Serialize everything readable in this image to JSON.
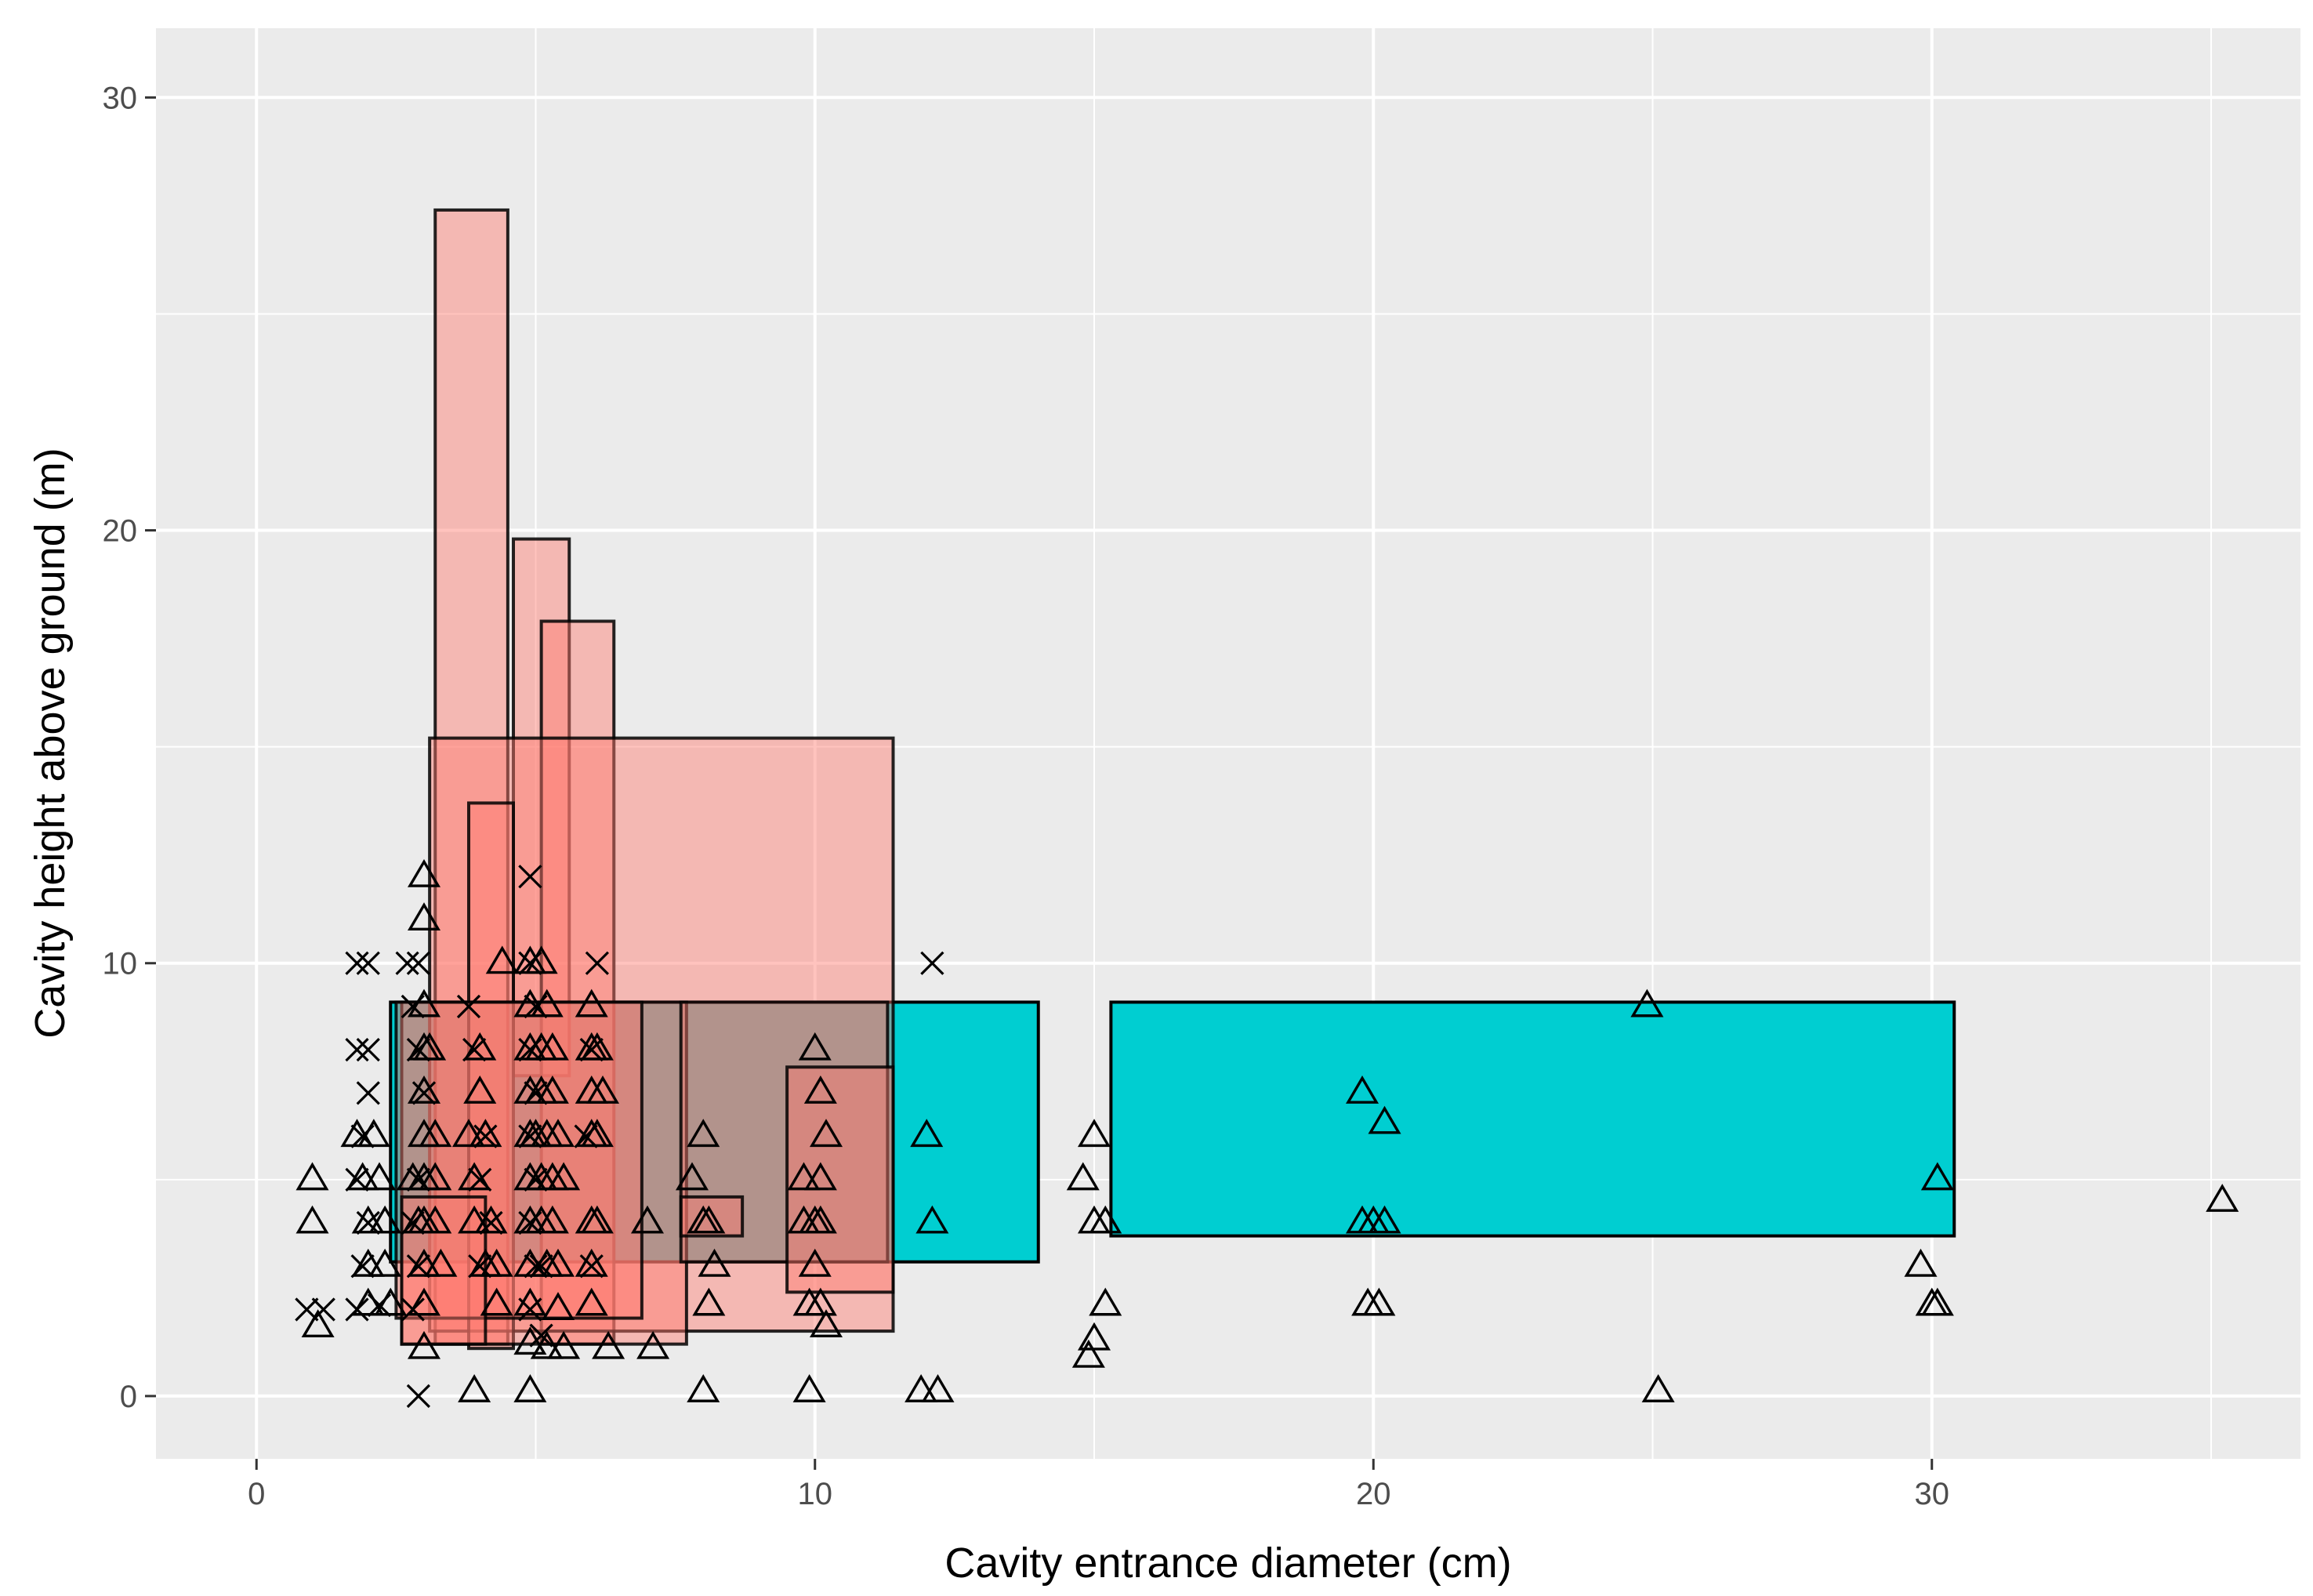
{
  "chart_data": {
    "type": "scatter",
    "title": "",
    "xlabel": "Cavity entrance diameter (cm)",
    "ylabel": "Cavity height above ground (m)",
    "xlim": [
      -1.8,
      36.6
    ],
    "ylim": [
      -1.45,
      31.6
    ],
    "x_ticks": [
      0,
      10,
      20,
      30
    ],
    "y_ticks": [
      0,
      10,
      20,
      30
    ],
    "x_tick_labels": [
      "0",
      "10",
      "20",
      "30"
    ],
    "y_tick_labels": [
      "0",
      "10",
      "20",
      "30"
    ],
    "grid": true,
    "colors": {
      "panel": "#ebebeb",
      "grid_major": "#ffffff",
      "red_fill": "#ff7a6f",
      "cyan_fill": "#00ced1",
      "outline": "#000000"
    },
    "rectangles": [
      {
        "group": "cyan",
        "x0": 2.4,
        "x1": 14.0,
        "y0": 3.1,
        "y1": 9.1
      },
      {
        "group": "cyan",
        "x0": 15.3,
        "x1": 30.4,
        "y0": 3.7,
        "y1": 9.1
      },
      {
        "group": "red",
        "x0": 3.2,
        "x1": 4.5,
        "y0": 1.2,
        "y1": 27.4
      },
      {
        "group": "red",
        "x0": 4.6,
        "x1": 5.6,
        "y0": 7.4,
        "y1": 19.8
      },
      {
        "group": "red",
        "x0": 5.1,
        "x1": 6.4,
        "y0": 1.2,
        "y1": 17.9
      },
      {
        "group": "red",
        "x0": 3.1,
        "x1": 11.4,
        "y0": 1.5,
        "y1": 15.2
      },
      {
        "group": "red",
        "x0": 3.8,
        "x1": 4.6,
        "y0": 1.1,
        "y1": 13.7
      },
      {
        "group": "red",
        "x0": 2.6,
        "x1": 7.7,
        "y0": 1.2,
        "y1": 9.1
      },
      {
        "group": "red",
        "x0": 2.5,
        "x1": 6.9,
        "y0": 1.8,
        "y1": 9.1
      },
      {
        "group": "red",
        "x0": 2.6,
        "x1": 4.1,
        "y0": 1.2,
        "y1": 4.6
      },
      {
        "group": "red",
        "x0": 7.6,
        "x1": 11.3,
        "y0": 3.1,
        "y1": 9.1
      },
      {
        "group": "red",
        "x0": 9.5,
        "x1": 11.4,
        "y0": 2.4,
        "y1": 7.6
      },
      {
        "group": "red",
        "x0": 7.6,
        "x1": 8.7,
        "y0": 3.7,
        "y1": 4.6
      }
    ],
    "series": [
      {
        "name": "triangle",
        "points": [
          [
            1.0,
            5.0
          ],
          [
            1.0,
            4.0
          ],
          [
            1.1,
            1.6
          ],
          [
            1.8,
            6.0
          ],
          [
            1.9,
            5.0
          ],
          [
            2.0,
            4.0
          ],
          [
            2.0,
            3.0
          ],
          [
            2.0,
            2.1
          ],
          [
            2.1,
            6.0
          ],
          [
            2.2,
            5.0
          ],
          [
            2.3,
            4.0
          ],
          [
            2.3,
            3.0
          ],
          [
            2.4,
            2.1
          ],
          [
            2.8,
            5.0
          ],
          [
            2.9,
            4.0
          ],
          [
            3.0,
            12.0
          ],
          [
            3.0,
            11.0
          ],
          [
            3.0,
            9.0
          ],
          [
            3.0,
            8.0
          ],
          [
            3.0,
            7.0
          ],
          [
            3.0,
            6.0
          ],
          [
            3.0,
            5.0
          ],
          [
            3.0,
            4.0
          ],
          [
            3.0,
            3.0
          ],
          [
            3.0,
            2.1
          ],
          [
            3.0,
            1.1
          ],
          [
            3.1,
            8.0
          ],
          [
            3.2,
            6.0
          ],
          [
            3.2,
            5.0
          ],
          [
            3.2,
            4.0
          ],
          [
            3.3,
            3.0
          ],
          [
            3.8,
            6.0
          ],
          [
            3.9,
            5.0
          ],
          [
            3.9,
            4.0
          ],
          [
            3.9,
            0.1
          ],
          [
            4.0,
            8.0
          ],
          [
            4.0,
            7.0
          ],
          [
            4.1,
            6.0
          ],
          [
            4.1,
            3.0
          ],
          [
            4.2,
            4.0
          ],
          [
            4.3,
            2.1
          ],
          [
            4.3,
            3.0
          ],
          [
            4.4,
            10.0
          ],
          [
            4.9,
            10.0
          ],
          [
            4.9,
            9.0
          ],
          [
            4.9,
            8.0
          ],
          [
            4.9,
            7.0
          ],
          [
            4.9,
            6.0
          ],
          [
            4.9,
            5.0
          ],
          [
            4.9,
            4.0
          ],
          [
            4.9,
            3.0
          ],
          [
            4.9,
            2.1
          ],
          [
            4.9,
            1.2
          ],
          [
            4.9,
            0.1
          ],
          [
            5.0,
            6.0
          ],
          [
            5.1,
            5.0
          ],
          [
            5.1,
            4.0
          ],
          [
            5.1,
            10.0
          ],
          [
            5.1,
            8.0
          ],
          [
            5.1,
            7.0
          ],
          [
            5.2,
            9.0
          ],
          [
            5.2,
            6.0
          ],
          [
            5.2,
            3.0
          ],
          [
            5.2,
            1.1
          ],
          [
            5.3,
            8.0
          ],
          [
            5.3,
            7.0
          ],
          [
            5.3,
            5.0
          ],
          [
            5.3,
            4.0
          ],
          [
            5.4,
            6.0
          ],
          [
            5.4,
            3.0
          ],
          [
            5.4,
            2.0
          ],
          [
            5.5,
            5.0
          ],
          [
            5.5,
            1.1
          ],
          [
            6.0,
            9.0
          ],
          [
            6.0,
            8.0
          ],
          [
            6.0,
            7.0
          ],
          [
            6.0,
            6.0
          ],
          [
            6.0,
            4.0
          ],
          [
            6.0,
            3.0
          ],
          [
            6.0,
            2.1
          ],
          [
            6.1,
            8.0
          ],
          [
            6.1,
            6.0
          ],
          [
            6.2,
            7.0
          ],
          [
            6.3,
            1.1
          ],
          [
            6.1,
            4.0
          ],
          [
            7.0,
            4.0
          ],
          [
            7.1,
            1.1
          ],
          [
            7.8,
            5.0
          ],
          [
            8.0,
            6.0
          ],
          [
            8.0,
            4.0
          ],
          [
            8.1,
            4.0
          ],
          [
            8.1,
            2.1
          ],
          [
            8.2,
            3.0
          ],
          [
            8.0,
            0.1
          ],
          [
            9.8,
            5.0
          ],
          [
            9.8,
            4.0
          ],
          [
            9.9,
            2.1
          ],
          [
            9.9,
            0.1
          ],
          [
            10.0,
            8.0
          ],
          [
            10.0,
            4.0
          ],
          [
            10.0,
            3.0
          ],
          [
            10.1,
            7.0
          ],
          [
            10.1,
            5.0
          ],
          [
            10.1,
            4.0
          ],
          [
            10.1,
            2.1
          ],
          [
            10.2,
            6.0
          ],
          [
            10.2,
            1.6
          ],
          [
            11.9,
            0.1
          ],
          [
            12.0,
            6.0
          ],
          [
            12.1,
            4.0
          ],
          [
            12.2,
            0.1
          ],
          [
            14.8,
            5.0
          ],
          [
            14.9,
            0.9
          ],
          [
            15.0,
            6.0
          ],
          [
            15.0,
            4.0
          ],
          [
            15.0,
            1.3
          ],
          [
            15.2,
            4.0
          ],
          [
            15.2,
            2.1
          ],
          [
            19.8,
            7.0
          ],
          [
            19.8,
            4.0
          ],
          [
            19.9,
            2.1
          ],
          [
            20.0,
            4.0
          ],
          [
            20.1,
            2.1
          ],
          [
            20.2,
            4.0
          ],
          [
            20.2,
            6.3
          ],
          [
            24.9,
            9.0
          ],
          [
            25.1,
            0.1
          ],
          [
            29.8,
            3.0
          ],
          [
            30.0,
            2.1
          ],
          [
            30.1,
            2.1
          ],
          [
            30.1,
            5.0
          ],
          [
            35.2,
            4.5
          ]
        ]
      },
      {
        "name": "cross",
        "points": [
          [
            0.9,
            2.0
          ],
          [
            1.2,
            2.0
          ],
          [
            1.8,
            10.0
          ],
          [
            2.0,
            10.0
          ],
          [
            1.8,
            8.0
          ],
          [
            2.0,
            8.0
          ],
          [
            2.0,
            7.0
          ],
          [
            1.9,
            6.0
          ],
          [
            1.8,
            5.0
          ],
          [
            2.0,
            4.0
          ],
          [
            1.9,
            3.0
          ],
          [
            1.8,
            2.0
          ],
          [
            2.2,
            2.1
          ],
          [
            2.7,
            10.0
          ],
          [
            2.9,
            10.0
          ],
          [
            2.8,
            9.0
          ],
          [
            2.9,
            8.0
          ],
          [
            3.0,
            7.0
          ],
          [
            2.9,
            5.0
          ],
          [
            2.8,
            4.0
          ],
          [
            2.9,
            3.0
          ],
          [
            2.8,
            2.0
          ],
          [
            2.9,
            0.0
          ],
          [
            3.8,
            9.0
          ],
          [
            3.9,
            8.0
          ],
          [
            4.0,
            5.0
          ],
          [
            4.0,
            3.0
          ],
          [
            4.2,
            4.0
          ],
          [
            4.1,
            6.0
          ],
          [
            4.9,
            12.0
          ],
          [
            4.9,
            10.0
          ],
          [
            5.0,
            9.0
          ],
          [
            4.9,
            8.0
          ],
          [
            5.0,
            7.0
          ],
          [
            4.9,
            6.0
          ],
          [
            5.0,
            5.0
          ],
          [
            4.9,
            4.0
          ],
          [
            5.0,
            3.0
          ],
          [
            4.9,
            2.0
          ],
          [
            5.1,
            1.4
          ],
          [
            5.1,
            3.0
          ],
          [
            5.9,
            6.0
          ],
          [
            6.0,
            3.0
          ],
          [
            6.1,
            10.0
          ],
          [
            6.0,
            8.0
          ],
          [
            12.1,
            10.0
          ]
        ]
      }
    ]
  }
}
